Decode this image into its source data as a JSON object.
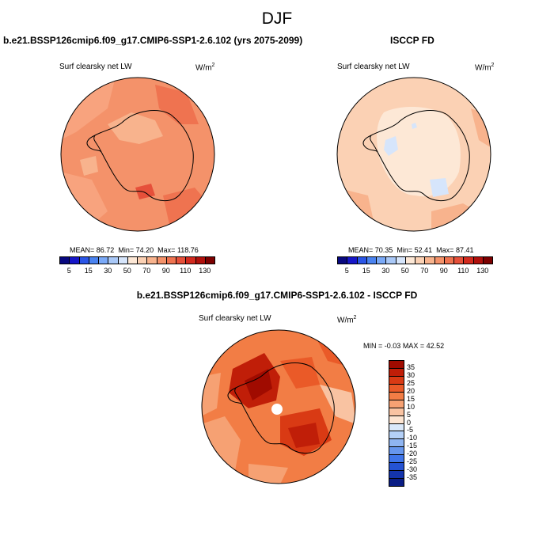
{
  "figure_title": "DJF",
  "panels": [
    {
      "title": "b.e21.BSSP126cmip6.f09_g17.CMIP6-SSP1-2.6.102 (yrs 2075-2099)",
      "variable": "Surf clearsky net LW",
      "units_base": "W/m",
      "units_exp": "2",
      "stats": {
        "mean_label": "MEAN=",
        "mean": "86.72",
        "min_label": "Min=",
        "min": "74.20",
        "max_label": "Max=",
        "max": "118.76"
      }
    },
    {
      "title": "ISCCP FD",
      "variable": "Surf clearsky net LW",
      "units_base": "W/m",
      "units_exp": "2",
      "stats": {
        "mean_label": "MEAN=",
        "mean": "70.35",
        "min_label": "Min=",
        "min": "52.41",
        "max_label": "Max=",
        "max": "87.41"
      }
    },
    {
      "title": "b.e21.BSSP126cmip6.f09_g17.CMIP6-SSP1-2.6.102 - ISCCP FD",
      "variable": "Surf clearsky net LW",
      "units_base": "W/m",
      "units_exp": "2",
      "stats": {
        "min_label": "MIN =",
        "min": "-0.03",
        "max_label": "MAX =",
        "max": "42.52"
      }
    }
  ],
  "colorbar_abs": {
    "ticks": [
      "5",
      "15",
      "30",
      "50",
      "70",
      "90",
      "110",
      "130"
    ],
    "colors": [
      "#08087f",
      "#1616c8",
      "#2a55e6",
      "#4a83f0",
      "#7aa9f7",
      "#a9c8f7",
      "#d6e5fb",
      "#fde8d6",
      "#fbd1b4",
      "#f8b38d",
      "#f4926a",
      "#ef7350",
      "#e6503a",
      "#d22a1e",
      "#b0100c",
      "#7c0000"
    ]
  },
  "colorbar_diff": {
    "ticks": [
      "35",
      "30",
      "25",
      "20",
      "15",
      "10",
      "5",
      "0",
      "-5",
      "-10",
      "-15",
      "-20",
      "-25",
      "-30",
      "-35"
    ],
    "colors": [
      "#a00b00",
      "#c01e08",
      "#d93a14",
      "#ea5a28",
      "#f27d45",
      "#f6a173",
      "#f9c3a2",
      "#fde5d2",
      "#dae8f9",
      "#b4d0f7",
      "#8fb5f2",
      "#6696ee",
      "#3f75ea",
      "#2553d3",
      "#1434ad",
      "#0a1d85"
    ]
  },
  "chart_data": [
    {
      "type": "heatmap",
      "title": "b.e21.BSSP126cmip6.f09_g17.CMIP6-SSP1-2.6.102 (yrs 2075-2099)",
      "variable": "Surf clearsky net LW",
      "units": "W/m2",
      "projection": "south polar stereographic",
      "levels": [
        5,
        15,
        30,
        50,
        70,
        90,
        110,
        130
      ],
      "mean": 86.72,
      "min": 74.2,
      "max": 118.76
    },
    {
      "type": "heatmap",
      "title": "ISCCP FD",
      "variable": "Surf clearsky net LW",
      "units": "W/m2",
      "projection": "south polar stereographic",
      "levels": [
        5,
        15,
        30,
        50,
        70,
        90,
        110,
        130
      ],
      "mean": 70.35,
      "min": 52.41,
      "max": 87.41
    },
    {
      "type": "heatmap",
      "title": "b.e21.BSSP126cmip6.f09_g17.CMIP6-SSP1-2.6.102 - ISCCP FD",
      "variable": "Surf clearsky net LW",
      "units": "W/m2",
      "projection": "south polar stereographic",
      "levels": [
        -35,
        -30,
        -25,
        -20,
        -15,
        -10,
        -5,
        0,
        5,
        10,
        15,
        20,
        25,
        30,
        35
      ],
      "min": -0.03,
      "max": 42.52
    }
  ]
}
